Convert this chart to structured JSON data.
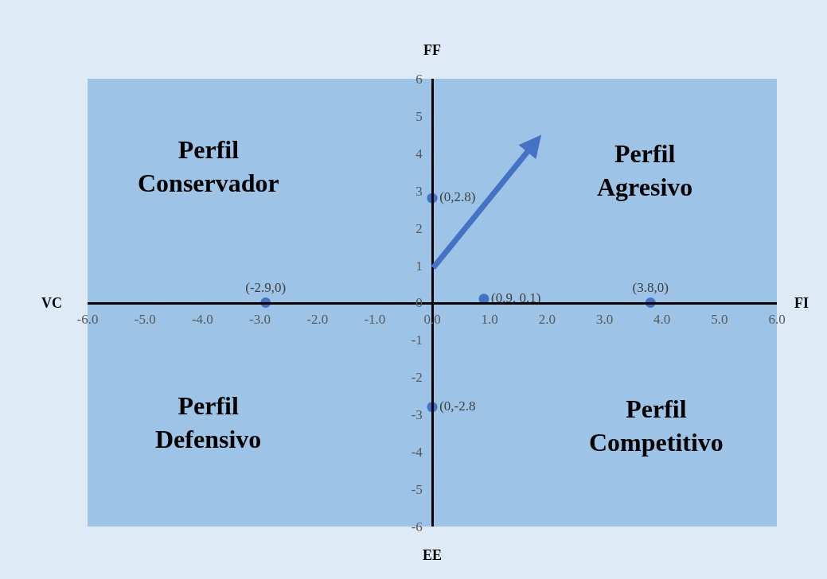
{
  "chart_data": {
    "type": "scatter",
    "annotations": [
      "FF",
      "EE",
      "VC",
      "FI",
      "Perfil\nConservador",
      "Perfil\nAgresivo",
      "Perfil\nDefensivo",
      "Perfil\nCompetitivo"
    ],
    "series": [
      {
        "color": "#4472c4",
        "x": [
          -2.9,
          0,
          0.9,
          3.8,
          0
        ],
        "values": [
          0,
          2.8,
          0.1,
          0,
          -2.8
        ],
        "value_labels": [
          "(-2.9,0)",
          "(0,2.8)",
          "(0.9, 0.1)",
          "(3.8,0)",
          "(0,-2.8"
        ]
      }
    ],
    "marker": "circle",
    "grid": false,
    "xlim": [
      -6,
      6
    ],
    "xticks": [
      {
        "value": -6,
        "label": "-6.0"
      },
      {
        "value": -5,
        "label": "-5.0"
      },
      {
        "value": -4,
        "label": "-4.0"
      },
      {
        "value": -3,
        "label": "-3.0"
      },
      {
        "value": -2,
        "label": "-2.0"
      },
      {
        "value": -1,
        "label": "-1.0"
      },
      {
        "value": 0,
        "label": "0.0"
      },
      {
        "value": 1,
        "label": "1.0"
      },
      {
        "value": 2,
        "label": "2.0"
      },
      {
        "value": 3,
        "label": "3.0"
      },
      {
        "value": 4,
        "label": "4.0"
      },
      {
        "value": 5,
        "label": "5.0"
      },
      {
        "value": 6,
        "label": "6.0"
      }
    ],
    "ylim": [
      -6,
      6
    ],
    "yticks": [
      -6,
      -5,
      -4,
      -3,
      -2,
      -1,
      0,
      1,
      2,
      3,
      4,
      5,
      6
    ]
  }
}
